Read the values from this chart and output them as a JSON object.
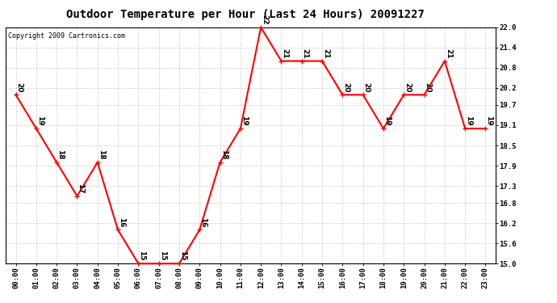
{
  "title": "Outdoor Temperature per Hour (Last 24 Hours) 20091227",
  "copyright": "Copyright 2009 Cartronics.com",
  "hours": [
    "00:00",
    "01:00",
    "02:00",
    "03:00",
    "04:00",
    "05:00",
    "06:00",
    "07:00",
    "08:00",
    "09:00",
    "10:00",
    "11:00",
    "12:00",
    "13:00",
    "14:00",
    "15:00",
    "16:00",
    "17:00",
    "18:00",
    "19:00",
    "20:00",
    "21:00",
    "22:00",
    "23:00"
  ],
  "values": [
    20,
    19,
    18,
    17,
    18,
    16,
    15,
    15,
    15,
    16,
    18,
    19,
    22,
    21,
    21,
    21,
    20,
    20,
    19,
    20,
    20,
    21,
    19,
    19
  ],
  "ylim": [
    15.0,
    22.0
  ],
  "yticks": [
    15.0,
    15.6,
    16.2,
    16.8,
    17.3,
    17.9,
    18.5,
    19.1,
    19.7,
    20.2,
    20.8,
    21.4,
    22.0
  ],
  "line_color": "red",
  "marker_color": "red",
  "marker_style": "+",
  "marker_size": 5,
  "line_width": 1.5,
  "bg_color": "white",
  "grid_color": "#cccccc",
  "label_fontsize": 6.5,
  "title_fontsize": 10,
  "copyright_fontsize": 6
}
